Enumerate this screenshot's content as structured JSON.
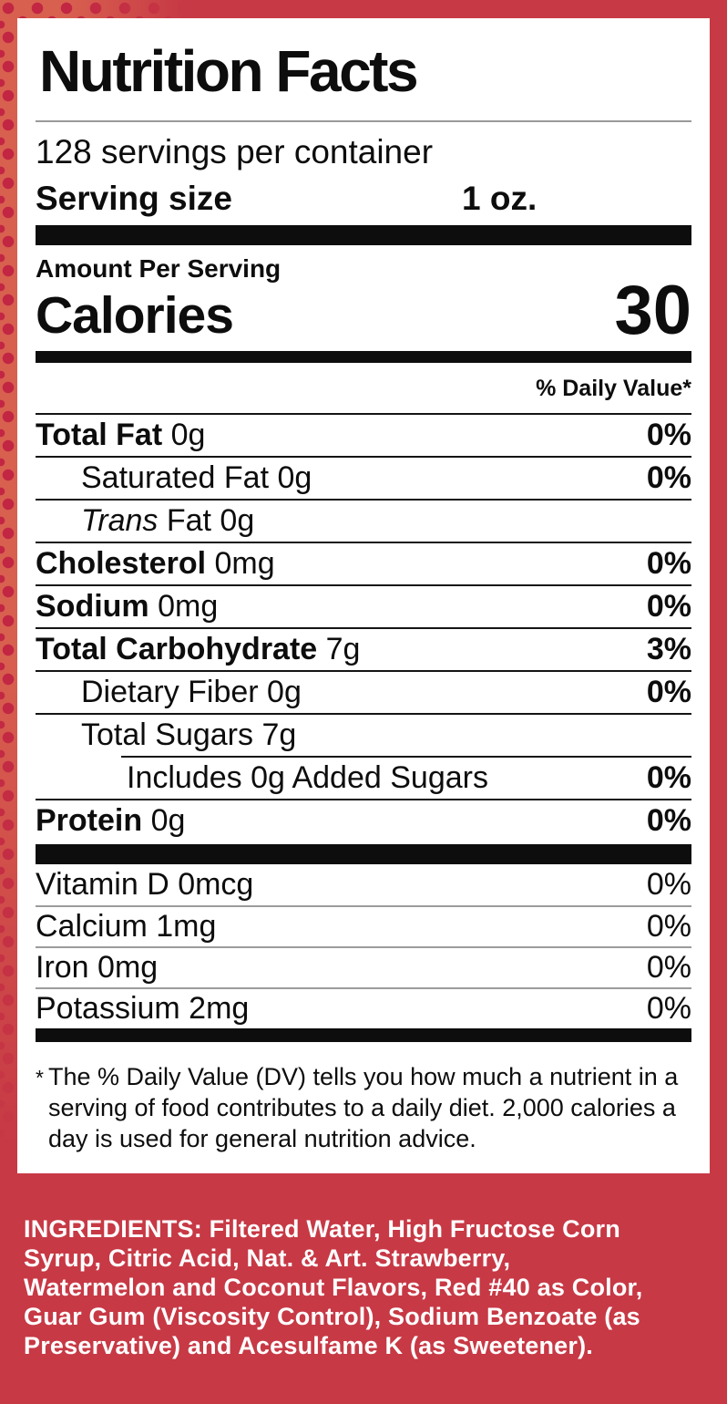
{
  "colors": {
    "background_red": "#c73945",
    "pattern_dot": "#c22643",
    "pattern_base": "#d8604f",
    "label_background": "#ffffff",
    "text_black": "#0d0d0d",
    "ingredients_text": "#ffffff"
  },
  "label": {
    "title": "Nutrition Facts",
    "servings_per_container": "128 servings per container",
    "serving_size_label": "Serving size",
    "serving_size_value": "1 oz.",
    "amount_per_serving": "Amount Per Serving",
    "calories_label": "Calories",
    "calories_value": "30",
    "daily_value_header": "% Daily Value*",
    "nutrients": [
      {
        "strong": "Total Fat",
        "rest": " 0g",
        "dv": "0%",
        "indent": 0
      },
      {
        "rest": "Saturated Fat 0g",
        "dv": "0%",
        "indent": 1
      },
      {
        "italic": "Trans",
        "rest": " Fat 0g",
        "dv": "",
        "indent": 1
      },
      {
        "strong": "Cholesterol",
        "rest": " 0mg",
        "dv": "0%",
        "indent": 0
      },
      {
        "strong": "Sodium",
        "rest": " 0mg",
        "dv": "0%",
        "indent": 0
      },
      {
        "strong": "Total Carbohydrate",
        "rest": " 7g",
        "dv": "3%",
        "indent": 0
      },
      {
        "rest": "Dietary Fiber 0g",
        "dv": "0%",
        "indent": 1
      },
      {
        "rest": "Total Sugars 7g",
        "dv": "",
        "indent": 1
      },
      {
        "rest": "Includes 0g Added Sugars",
        "dv": "0%",
        "indent": 2,
        "inset_rule": true
      },
      {
        "strong": "Protein",
        "rest": " 0g",
        "dv": "0%",
        "indent": 0
      }
    ],
    "vitamins": [
      {
        "label": "Vitamin D 0mcg",
        "dv": "0%"
      },
      {
        "label": "Calcium 1mg",
        "dv": "0%"
      },
      {
        "label": "Iron 0mg",
        "dv": "0%"
      },
      {
        "label": "Potassium 2mg",
        "dv": "0%"
      }
    ],
    "footnote_marker": "*",
    "footnote_text": "The % Daily Value (DV) tells you how much a nutrient in a serving of food contributes to a daily diet. 2,000 calories a day is used for general nutrition advice."
  },
  "ingredients": {
    "text": "INGREDIENTS: Filtered Water, High Fructose Corn Syrup, Citric Acid, Nat. & Art. Strawberry, Watermelon and Coconut Flavors, Red #40 as Color, Guar Gum (Viscosity Control), Sodium Benzoate (as Preservative) and Acesulfame K (as Sweetener)."
  }
}
